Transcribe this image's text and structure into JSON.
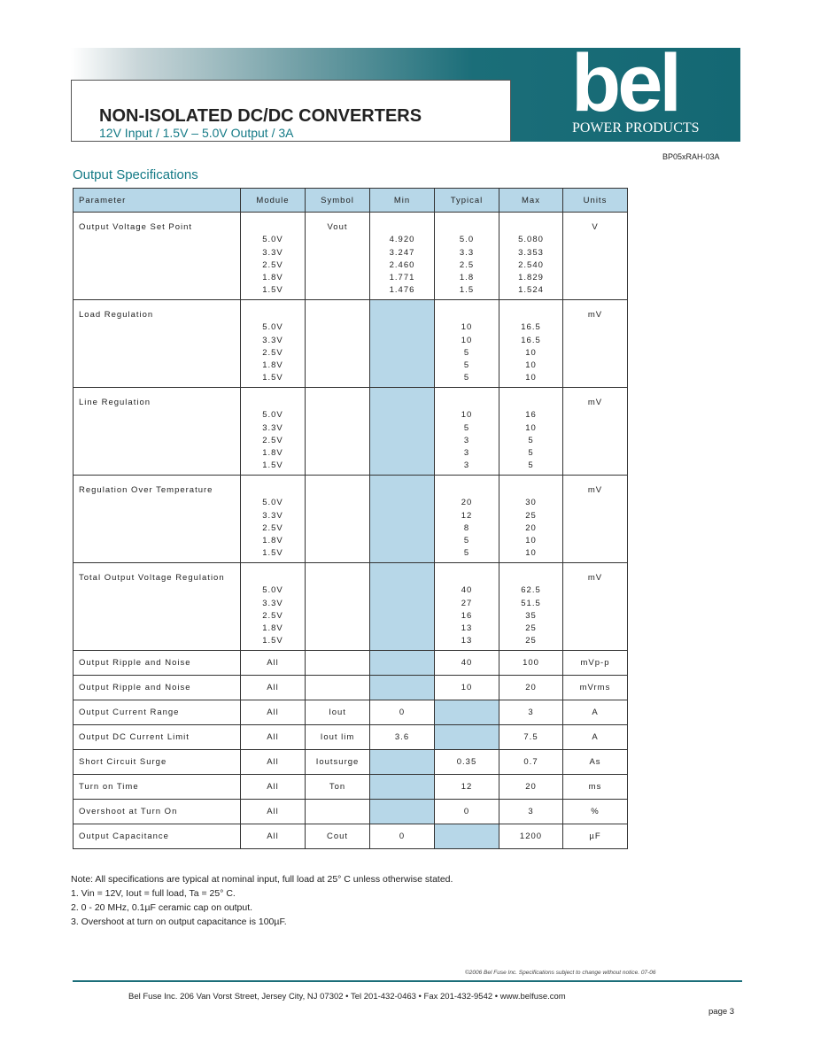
{
  "header": {
    "title": "NON-ISOLATED DC/DC CONVERTERS",
    "subtitle": "12V Input / 1.5V – 5.0V Output / 3A",
    "logo": "bel",
    "brand": "POWER PRODUCTS",
    "part_number": "BP05xRAH-03A"
  },
  "section_title": "Output Specifications",
  "table": {
    "columns": [
      "Parameter",
      "Module",
      "Symbol",
      "Min",
      "Typical",
      "Max",
      "Units"
    ],
    "rows": [
      {
        "parameter": "Output Voltage Set Point",
        "symbol": "Vout",
        "units": "V",
        "module": [
          "5.0V",
          "3.3V",
          "2.5V",
          "1.8V",
          "1.5V"
        ],
        "min": [
          "4.920",
          "3.247",
          "2.460",
          "1.771",
          "1.476"
        ],
        "typical": [
          "5.0",
          "3.3",
          "2.5",
          "1.8",
          "1.5"
        ],
        "max": [
          "5.080",
          "3.353",
          "2.540",
          "1.829",
          "1.524"
        ]
      },
      {
        "parameter": "Load Regulation",
        "units": "mV",
        "module": [
          "5.0V",
          "3.3V",
          "2.5V",
          "1.8V",
          "1.5V"
        ],
        "typical": [
          "10",
          "10",
          "5",
          "5",
          "5"
        ],
        "max": [
          "16.5",
          "16.5",
          "10",
          "10",
          "10"
        ]
      },
      {
        "parameter": "Line Regulation",
        "units": "mV",
        "module": [
          "5.0V",
          "3.3V",
          "2.5V",
          "1.8V",
          "1.5V"
        ],
        "typical": [
          "10",
          "5",
          "3",
          "3",
          "3"
        ],
        "max": [
          "16",
          "10",
          "5",
          "5",
          "5"
        ]
      },
      {
        "parameter": "Regulation Over Temperature",
        "units": "mV",
        "module": [
          "5.0V",
          "3.3V",
          "2.5V",
          "1.8V",
          "1.5V"
        ],
        "typical": [
          "20",
          "12",
          "8",
          "5",
          "5"
        ],
        "max": [
          "30",
          "25",
          "20",
          "10",
          "10"
        ]
      },
      {
        "parameter": "Total Output Voltage Regulation",
        "units": "mV",
        "module": [
          "5.0V",
          "3.3V",
          "2.5V",
          "1.8V",
          "1.5V"
        ],
        "typical": [
          "40",
          "27",
          "16",
          "13",
          "13"
        ],
        "max": [
          "62.5",
          "51.5",
          "35",
          "25",
          "25"
        ]
      },
      {
        "parameter": "Output Ripple and Noise",
        "module": "All",
        "typical": "40",
        "max": "100",
        "units": "mVp-p"
      },
      {
        "parameter": "Output Ripple and Noise",
        "module": "All",
        "typical": "10",
        "max": "20",
        "units": "mVrms"
      },
      {
        "parameter": "Output Current Range",
        "module": "All",
        "symbol": "Iout",
        "min": "0",
        "max": "3",
        "units": "A"
      },
      {
        "parameter": "Output DC Current Limit",
        "module": "All",
        "symbol": "Iout lim",
        "min": "3.6",
        "max": "7.5",
        "units": "A"
      },
      {
        "parameter": "Short Circuit Surge",
        "module": "All",
        "symbol": "Ioutsurge",
        "typical": "0.35",
        "max": "0.7",
        "units": "As"
      },
      {
        "parameter": "Turn on Time",
        "module": "All",
        "symbol": "Ton",
        "typical": "12",
        "max": "20",
        "units": "ms"
      },
      {
        "parameter": "Overshoot at Turn On",
        "module": "All",
        "typical": "0",
        "max": "3",
        "units": "%"
      },
      {
        "parameter": "Output Capacitance",
        "module": "All",
        "symbol": "Cout",
        "min": "0",
        "max": "1200",
        "units": "µF"
      }
    ]
  },
  "notes": [
    "Note: All specifications are typical at nominal input, full load at 25° C unless otherwise stated.",
    "1. Vin = 12V, Iout = full load, Ta = 25° C.",
    "2. 0 - 20 MHz, 0.1µF ceramic cap on output.",
    "3. Overshoot at turn on output capacitance is 100µF."
  ],
  "footer": {
    "copyright": "©2006 Bel Fuse Inc.   Specifications subject to change without notice. 07-06",
    "address": "Bel Fuse Inc.  206 Van Vorst Street, Jersey City, NJ 07302 • Tel 201-432-0463 • Fax 201-432-9542 • www.belfuse.com",
    "page": "page 3"
  }
}
